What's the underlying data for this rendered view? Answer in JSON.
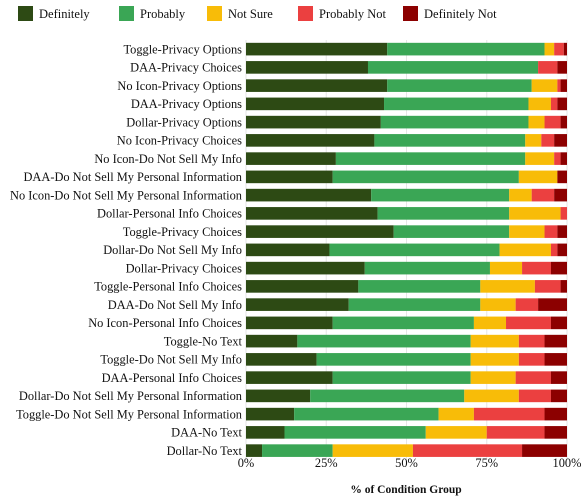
{
  "chart_data": {
    "type": "bar",
    "orientation": "horizontal",
    "stacked": true,
    "xlabel": "% of Condition Group",
    "xlim": [
      0,
      100
    ],
    "xticks": [
      {
        "value": 0,
        "label": "0%"
      },
      {
        "value": 25,
        "label": "25%"
      },
      {
        "value": 50,
        "label": "50%"
      },
      {
        "value": 75,
        "label": "75%"
      },
      {
        "value": 100,
        "label": "100%"
      }
    ],
    "grid": true,
    "legend": "top",
    "categories": [
      "Toggle-Privacy Options",
      "DAA-Privacy Choices",
      "No Icon-Privacy Options",
      "DAA-Privacy Options",
      "Dollar-Privacy Options",
      "No Icon-Privacy Choices",
      "No Icon-Do Not Sell My Info",
      "DAA-Do Not Sell My Personal Information",
      "No Icon-Do Not Sell My Personal Information",
      "Dollar-Personal Info Choices",
      "Toggle-Privacy Choices",
      "Dollar-Do Not Sell My Info",
      "Dollar-Privacy Choices",
      "Toggle-Personal Info Choices",
      "DAA-Do Not Sell My Info",
      "No Icon-Personal Info Choices",
      "Toggle-No Text",
      "Toggle-Do Not Sell My Info",
      "DAA-Personal Info Choices",
      "Dollar-Do Not Sell My Personal Information",
      "Toggle-Do Not Sell My Personal Information",
      "DAA-No Text",
      "Dollar-No Text"
    ],
    "series": [
      {
        "name": "Definitely",
        "color": "#2d4a14",
        "values": [
          44,
          38,
          44,
          43,
          42,
          40,
          28,
          27,
          39,
          41,
          46,
          26,
          37,
          35,
          32,
          27,
          16,
          22,
          27,
          20,
          15,
          12,
          5
        ]
      },
      {
        "name": "Probably",
        "color": "#3aa655",
        "values": [
          49,
          53,
          45,
          45,
          46,
          47,
          59,
          58,
          43,
          41,
          36,
          53,
          39,
          38,
          41,
          44,
          54,
          48,
          43,
          48,
          45,
          44,
          22
        ]
      },
      {
        "name": "Not Sure",
        "color": "#f8bc08",
        "values": [
          3,
          0,
          8,
          7,
          5,
          5,
          9,
          12,
          7,
          16,
          11,
          16,
          10,
          17,
          11,
          10,
          15,
          15,
          14,
          17,
          11,
          19,
          25
        ]
      },
      {
        "name": "Probably Not",
        "color": "#eb4040",
        "values": [
          3,
          6,
          1,
          2,
          5,
          4,
          2,
          0,
          7,
          2,
          4,
          2,
          9,
          8,
          7,
          14,
          8,
          8,
          11,
          10,
          22,
          18,
          34
        ]
      },
      {
        "name": "Definitely Not",
        "color": "#8c0000",
        "values": [
          1,
          3,
          2,
          3,
          2,
          4,
          2,
          3,
          4,
          0,
          3,
          3,
          5,
          2,
          9,
          5,
          7,
          7,
          5,
          5,
          7,
          7,
          14
        ]
      }
    ]
  }
}
